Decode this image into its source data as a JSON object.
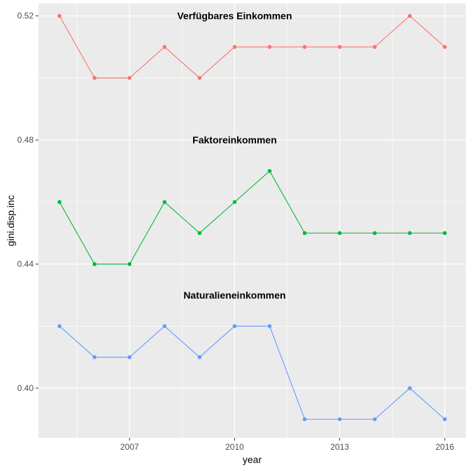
{
  "chart_data": {
    "type": "line",
    "title": "",
    "xlabel": "year",
    "ylabel": "gini.disp.inc",
    "x": [
      2005,
      2006,
      2007,
      2008,
      2009,
      2010,
      2011,
      2012,
      2013,
      2014,
      2015,
      2016
    ],
    "xlim": [
      2004.4,
      2016.6
    ],
    "ylim": [
      0.384,
      0.524
    ],
    "x_ticks": [
      2007,
      2010,
      2013,
      2016
    ],
    "y_ticks": [
      0.4,
      0.44,
      0.48,
      0.52
    ],
    "x_tick_labels": [
      "2007",
      "2010",
      "2013",
      "2016"
    ],
    "y_tick_labels": [
      "0.40",
      "0.44",
      "0.48",
      "0.52"
    ],
    "grid": true,
    "legend": "none",
    "series": [
      {
        "color": "#F8766D",
        "values": [
          0.52,
          0.5,
          0.5,
          0.51,
          0.5,
          0.51,
          0.51,
          0.51,
          0.51,
          0.51,
          0.52,
          0.51
        ]
      },
      {
        "color": "#00BA38",
        "values": [
          0.46,
          0.44,
          0.44,
          0.46,
          0.45,
          0.46,
          0.47,
          0.45,
          0.45,
          0.45,
          0.45,
          0.45
        ]
      },
      {
        "color": "#619CFF",
        "values": [
          0.42,
          0.41,
          0.41,
          0.42,
          0.41,
          0.42,
          0.42,
          0.39,
          0.39,
          0.39,
          0.4,
          0.39
        ]
      }
    ],
    "annotations": [
      {
        "text": "Verfügbares Einkommen",
        "x": 2010,
        "y": 0.52
      },
      {
        "text": "Faktoreinkommen",
        "x": 2010,
        "y": 0.48
      },
      {
        "text": "Naturalieneinkommen",
        "x": 2010,
        "y": 0.43
      }
    ]
  }
}
